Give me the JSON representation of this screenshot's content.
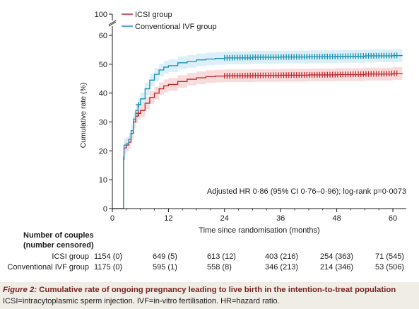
{
  "chart_data": {
    "type": "line",
    "title": "",
    "xlabel": "Time since randomisation (months)",
    "ylabel": "Cumulative rate (%)",
    "xlim": [
      0,
      62
    ],
    "x_ticks": [
      "0",
      "12",
      "24",
      "36",
      "48",
      "60"
    ],
    "x_tick_values": [
      0,
      12,
      24,
      36,
      48,
      60
    ],
    "y_ticks": [
      "0",
      "10",
      "20",
      "30",
      "40",
      "50",
      "60",
      "100"
    ],
    "y_tick_values": [
      0,
      10,
      20,
      30,
      40,
      50,
      60,
      100
    ],
    "y_axis_break": "between 60 and 100",
    "grid": false,
    "legend_position": "top-left",
    "annotation": "Adjusted HR 0·86 (95% CI 0·76–0·96); log-rank p=0·0073",
    "series": [
      {
        "name": "ICSI group",
        "color": "#c0282d",
        "band_color": "#f6cfcf",
        "x": [
          0,
          2.3,
          2.4,
          2.5,
          3,
          3.5,
          4,
          4.5,
          5,
          5.5,
          6,
          7,
          8,
          9,
          10,
          11,
          12,
          14,
          16,
          18,
          20,
          22,
          24,
          30,
          36,
          42,
          48,
          54,
          60,
          62
        ],
        "y": [
          0,
          0,
          17,
          21,
          22,
          23,
          26,
          30,
          32,
          33,
          34,
          36.5,
          38.5,
          40,
          41.5,
          42.5,
          43,
          44,
          44.8,
          45.3,
          45.7,
          45.9,
          46,
          46.1,
          46.2,
          46.3,
          46.4,
          46.6,
          46.8,
          47
        ],
        "ci_halfwidth": 2.2
      },
      {
        "name": "Conventional IVF group",
        "color": "#1a8fb0",
        "band_color": "#cde9f4",
        "x": [
          0,
          2.3,
          2.4,
          2.5,
          3,
          3.5,
          4,
          4.5,
          5,
          5.5,
          6,
          7,
          8,
          9,
          10,
          11,
          12,
          14,
          16,
          18,
          20,
          22,
          24,
          30,
          36,
          42,
          48,
          54,
          60,
          62
        ],
        "y": [
          0,
          0,
          18,
          22,
          22.5,
          24,
          27,
          31,
          34,
          36,
          38,
          41.5,
          44.5,
          46.5,
          48,
          49,
          49.5,
          50.5,
          51,
          51.5,
          51.8,
          52,
          52.2,
          52.4,
          52.5,
          52.6,
          52.7,
          52.9,
          53,
          53.1
        ],
        "ci_halfwidth": 2.2
      }
    ],
    "censor_marks_from_month": 24
  },
  "risk_table": {
    "heading_line1": "Number of couples",
    "heading_line2": "(number censored)",
    "rows": [
      {
        "label": "ICSI group",
        "values": [
          "1154 (0)",
          "649 (5)",
          "613 (12)",
          "403 (216)",
          "254 (363)",
          "71 (545)"
        ]
      },
      {
        "label": "Conventional IVF group",
        "values": [
          "1175 (0)",
          "595 (1)",
          "558 (8)",
          "346 (213)",
          "214 (346)",
          "53 (506)"
        ]
      }
    ]
  },
  "caption": {
    "figure_label": "Figure 2:",
    "title": "Cumulative rate of ongoing pregnancy leading to live birth in the intention-to-treat population",
    "abbreviations": "ICSI=intracytoplasmic sperm injection. IVF=in-vitro fertilisation. HR=hazard ratio."
  }
}
